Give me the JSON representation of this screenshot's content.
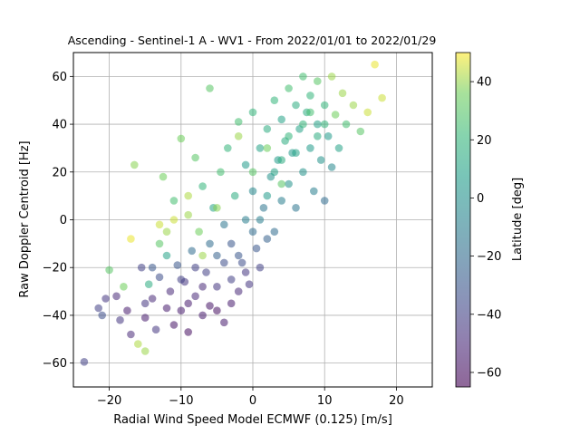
{
  "chart_data": {
    "type": "scatter",
    "title": "Ascending - Sentinel-1 A - WV1 - From 2022/01/01 to 2022/01/29",
    "xlabel": "Radial Wind Speed Model ECMWF (0.125) [m/s]",
    "ylabel": "Raw Doppler Centroid [Hz]",
    "xlim": [
      -25,
      25
    ],
    "ylim": [
      -70,
      70
    ],
    "xticks": [
      -20,
      -10,
      0,
      10,
      20
    ],
    "yticks": [
      -60,
      -40,
      -20,
      0,
      20,
      40,
      60
    ],
    "grid": true,
    "point_alpha": 0.55,
    "colorbar": {
      "label": "Latitude [deg]",
      "range": [
        -65,
        50
      ],
      "ticks": [
        -60,
        -40,
        -20,
        0,
        20,
        40
      ],
      "colormap": "viridis"
    },
    "series": [
      {
        "color_by": "latitude",
        "points": [
          [
            -23.5,
            -59.5,
            -40
          ],
          [
            -21.5,
            -37,
            -40
          ],
          [
            -21,
            -40,
            -35
          ],
          [
            -20.5,
            -33,
            -45
          ],
          [
            -20,
            -21,
            30
          ],
          [
            -19,
            -32,
            -50
          ],
          [
            -18.5,
            -42,
            -45
          ],
          [
            -18,
            -28,
            35
          ],
          [
            -17.5,
            -38,
            -55
          ],
          [
            -17,
            -8,
            48
          ],
          [
            -17,
            -48,
            -50
          ],
          [
            -16.5,
            23,
            38
          ],
          [
            -16,
            -52,
            42
          ],
          [
            -15.5,
            -20,
            -40
          ],
          [
            -15,
            -41,
            -55
          ],
          [
            -15,
            -55,
            40
          ],
          [
            -14.5,
            -27,
            15
          ],
          [
            -14,
            -33,
            -50
          ],
          [
            -13.5,
            -46,
            -45
          ],
          [
            -13,
            -10,
            30
          ],
          [
            -13,
            -24,
            -35
          ],
          [
            -12.5,
            18,
            35
          ],
          [
            -12,
            -37,
            -55
          ],
          [
            -12,
            -5,
            40
          ],
          [
            -11.5,
            -30,
            -50
          ],
          [
            -11,
            -44,
            -58
          ],
          [
            -11,
            8,
            25
          ],
          [
            -10.5,
            -19,
            -30
          ],
          [
            -10,
            34,
            35
          ],
          [
            -10,
            -38,
            -55
          ],
          [
            -9.5,
            -26,
            -45
          ],
          [
            -9,
            2,
            40
          ],
          [
            -9,
            -47,
            -60
          ],
          [
            -8.5,
            -13,
            -20
          ],
          [
            -8,
            26,
            30
          ],
          [
            -8,
            -32,
            -50
          ],
          [
            -7.5,
            -5,
            35
          ],
          [
            -7,
            -40,
            -55
          ],
          [
            -7,
            14,
            20
          ],
          [
            -6.5,
            -22,
            -40
          ],
          [
            -6,
            55,
            30
          ],
          [
            -6,
            -36,
            -58
          ],
          [
            -5.5,
            5,
            10
          ],
          [
            -5,
            -28,
            -45
          ],
          [
            -5,
            -15,
            -25
          ],
          [
            -4.5,
            20,
            25
          ],
          [
            -4,
            -43,
            -55
          ],
          [
            -4,
            -2,
            -15
          ],
          [
            -3.5,
            30,
            20
          ],
          [
            -3,
            -25,
            -40
          ],
          [
            -3,
            -10,
            -30
          ],
          [
            -2.5,
            10,
            15
          ],
          [
            -2,
            -30,
            -50
          ],
          [
            -2,
            41,
            25
          ],
          [
            -1.5,
            -18,
            -35
          ],
          [
            -1,
            0,
            -10
          ],
          [
            -1,
            23,
            5
          ],
          [
            -0.5,
            -27,
            -45
          ],
          [
            0,
            45,
            20
          ],
          [
            0,
            12,
            -5
          ],
          [
            0.5,
            -12,
            -30
          ],
          [
            1,
            30,
            10
          ],
          [
            1,
            -20,
            -40
          ],
          [
            1.5,
            5,
            -15
          ],
          [
            2,
            38,
            15
          ],
          [
            2,
            -8,
            -25
          ],
          [
            2.5,
            18,
            0
          ],
          [
            3,
            50,
            20
          ],
          [
            3,
            -5,
            -20
          ],
          [
            3.5,
            25,
            5
          ],
          [
            4,
            42,
            10
          ],
          [
            4,
            8,
            -10
          ],
          [
            4.5,
            33,
            15
          ],
          [
            5,
            55,
            25
          ],
          [
            5,
            15,
            0
          ],
          [
            5.5,
            28,
            5
          ],
          [
            6,
            48,
            15
          ],
          [
            6,
            5,
            -15
          ],
          [
            6.5,
            38,
            10
          ],
          [
            7,
            60,
            25
          ],
          [
            7,
            20,
            0
          ],
          [
            7.5,
            45,
            15
          ],
          [
            8,
            30,
            5
          ],
          [
            8,
            52,
            20
          ],
          [
            8.5,
            12,
            -10
          ],
          [
            9,
            40,
            10
          ],
          [
            9,
            58,
            30
          ],
          [
            9.5,
            25,
            0
          ],
          [
            10,
            48,
            20
          ],
          [
            10,
            8,
            -20
          ],
          [
            10.5,
            35,
            5
          ],
          [
            11,
            22,
            -5
          ],
          [
            11.5,
            44,
            35
          ],
          [
            12,
            30,
            10
          ],
          [
            12.5,
            53,
            40
          ],
          [
            13,
            40,
            25
          ],
          [
            14,
            48,
            40
          ],
          [
            15,
            37,
            30
          ],
          [
            16,
            45,
            45
          ],
          [
            17,
            65,
            48
          ],
          [
            18,
            51,
            45
          ],
          [
            -15,
            -35,
            -45
          ],
          [
            -14,
            -20,
            -30
          ],
          [
            -12,
            -15,
            10
          ],
          [
            -10,
            -25,
            -40
          ],
          [
            -9,
            -35,
            -55
          ],
          [
            -8,
            -20,
            -40
          ],
          [
            -7,
            -28,
            -50
          ],
          [
            -6,
            -10,
            -20
          ],
          [
            -5,
            -38,
            -60
          ],
          [
            -4,
            -18,
            -35
          ],
          [
            -3,
            -35,
            -55
          ],
          [
            -2,
            -15,
            -30
          ],
          [
            -1,
            -22,
            -45
          ],
          [
            0,
            -5,
            -20
          ],
          [
            1,
            0,
            -10
          ],
          [
            2,
            10,
            5
          ],
          [
            3,
            20,
            10
          ],
          [
            4,
            25,
            15
          ],
          [
            5,
            35,
            20
          ],
          [
            6,
            28,
            10
          ],
          [
            7,
            40,
            20
          ],
          [
            8,
            45,
            25
          ],
          [
            9,
            35,
            15
          ],
          [
            10,
            40,
            20
          ],
          [
            -11,
            0,
            45
          ],
          [
            -9,
            10,
            42
          ],
          [
            -7,
            -15,
            40
          ],
          [
            -5,
            5,
            38
          ],
          [
            -13,
            -2,
            45
          ],
          [
            0,
            20,
            30
          ],
          [
            2,
            30,
            35
          ],
          [
            4,
            15,
            30
          ],
          [
            -2,
            35,
            40
          ],
          [
            11,
            60,
            40
          ]
        ]
      }
    ]
  }
}
